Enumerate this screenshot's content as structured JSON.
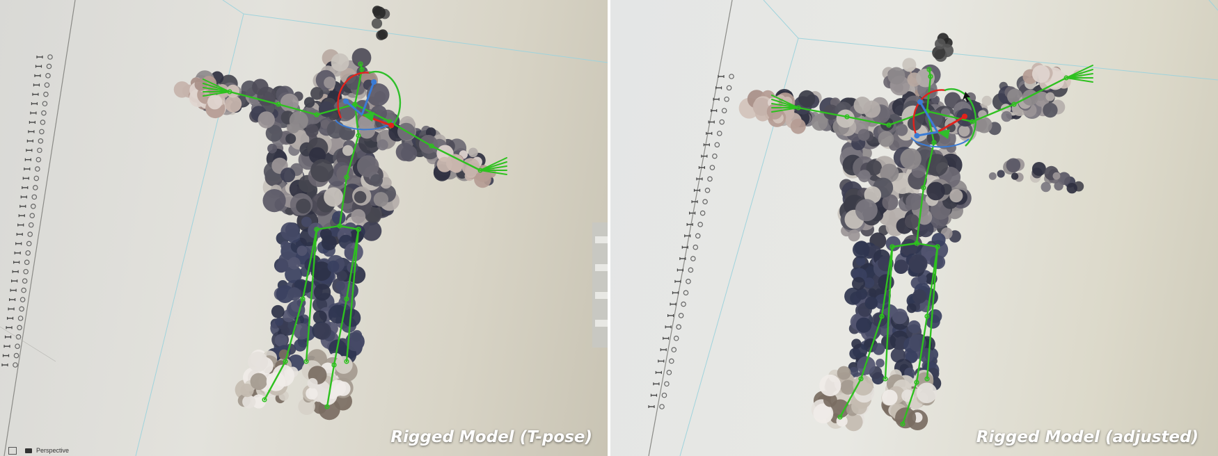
{
  "panels": [
    {
      "id": "left",
      "caption": "Rigged Model (T-pose)",
      "viewport": {
        "camera_label": "Perspective"
      },
      "outliner": {
        "row_icons": [
          "bone-icon",
          "mesh-icon"
        ]
      }
    },
    {
      "id": "right",
      "caption": "Rigged Model (adjusted)",
      "viewport": {
        "camera_label": ""
      },
      "outliner": {
        "row_icons": [
          "bone-icon",
          "mesh-icon"
        ]
      }
    }
  ],
  "colors": {
    "bone": "#2ec11f",
    "gizmo_x": "#e2221c",
    "gizmo_y": "#2fbf2a",
    "gizmo_z": "#3a7bd5",
    "grid_line": "#9fd3dc",
    "caption": "#ffffff"
  }
}
